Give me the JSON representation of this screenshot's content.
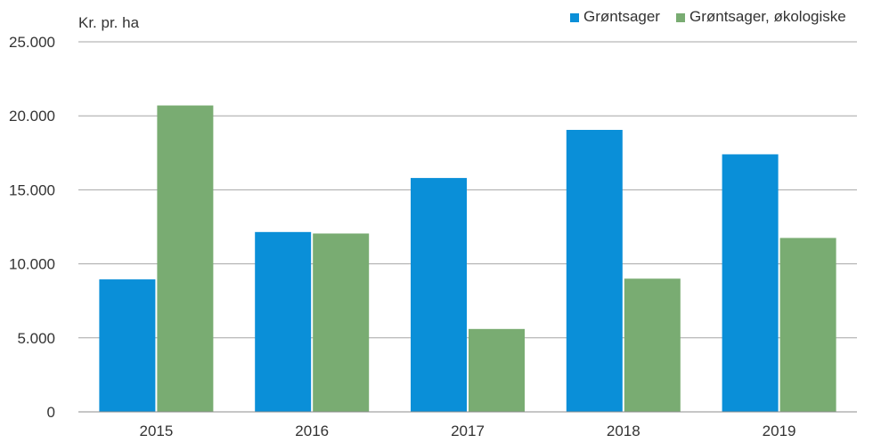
{
  "chart_data": {
    "type": "bar",
    "unit_label": "Kr. pr. ha",
    "categories": [
      "2015",
      "2016",
      "2017",
      "2018",
      "2019"
    ],
    "series": [
      {
        "name": "Grøntsager",
        "color": "#0a8fd8",
        "values": [
          8950,
          12150,
          15800,
          19050,
          17400
        ]
      },
      {
        "name": "Grøntsager, økologiske",
        "color": "#79ac72",
        "values": [
          20700,
          12050,
          5600,
          9000,
          11750
        ]
      }
    ],
    "ylim": [
      0,
      25000
    ],
    "yticks": [
      0,
      5000,
      10000,
      15000,
      20000,
      25000
    ],
    "ytick_labels": [
      "0",
      "5.000",
      "10.000",
      "15.000",
      "20.000",
      "25.000"
    ],
    "grid": true,
    "gridline_color": "#a6a6a6",
    "legend_position": "top-right"
  }
}
